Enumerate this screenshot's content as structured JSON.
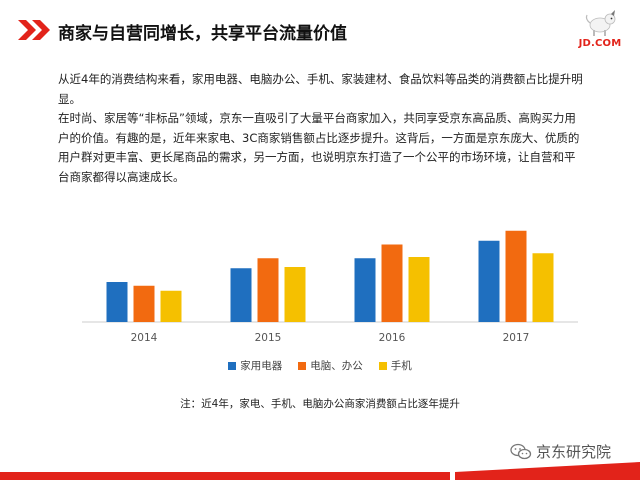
{
  "header": {
    "title": "商家与自营同增长，共享平台流量价值",
    "logo_text": "JD.COM"
  },
  "body": {
    "paragraphs": [
      "从近4年的消费结构来看，家用电器、电脑办公、手机、家装建材、食品饮料等品类的消费额占比提升明显。",
      "在时尚、家居等“非标品”领域，京东一直吸引了大量平台商家加入，共同享受京东高品质、高购买力用户的价值。有趣的是，近年来家电、3C商家销售额占比逐步提升。这背后，一方面是京东庞大、优质的用户群对更丰富、更长尾商品的需求，另一方面，也说明京东打造了一个公平的市场环境，让自营和平台商家都得以高速成长。"
    ]
  },
  "chart_data": {
    "type": "bar",
    "categories": [
      "2014",
      "2015",
      "2016",
      "2017"
    ],
    "series": [
      {
        "name": "家用电器",
        "color": "#1f6fbf",
        "values": [
          32,
          43,
          51,
          65
        ]
      },
      {
        "name": "电脑、办公",
        "color": "#f26a10",
        "values": [
          29,
          51,
          62,
          73
        ]
      },
      {
        "name": "手机",
        "color": "#f5c000",
        "values": [
          25,
          44,
          52,
          55
        ]
      }
    ],
    "ylim": [
      0,
      80
    ],
    "grid": false,
    "legend": "bottom"
  },
  "note": "注：近4年，家电、手机、电脑办公商家消费额占比逐年提升",
  "watermark": "京东研究院",
  "colors": {
    "accent": "#e2231a"
  }
}
